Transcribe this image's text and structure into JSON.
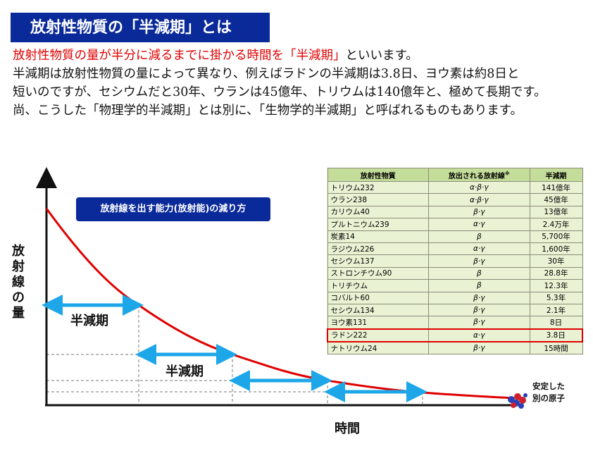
{
  "title": "放射性物質の「半減期」とは",
  "intro": {
    "line1_red": "放射性物質の量が半分に減るまでに掛かる時間を「半減期」",
    "line1_rest": "といいます。",
    "line2": "半減期は放射性物質の量によって異なり、例えばラドンの半減期は3.8日、ヨウ素は約8日と",
    "line3": "短いのですが、セシウムだと30年、ウランは45億年、トリウムは140億年と、極めて長期です。",
    "line4": "尚、こうした「物理学的半減期」とは別に、「生物学的半減期」と呼ばれるものもあります。"
  },
  "diagram": {
    "box_label": "放射線を出す能力(放射能)の減り方",
    "halflife_label_1": "半減期",
    "halflife_label_2": "半減期",
    "y_axis_label": "放射線の量",
    "x_axis_label": "時間",
    "stable_label_1": "安定した",
    "stable_label_2": "別の原子",
    "curve_color": "#e00000",
    "arrow_color": "#1ea7e8"
  },
  "table": {
    "headers": [
      "放射性物質",
      "放出される放射線",
      "半減期"
    ],
    "header_note": "※",
    "rows": [
      {
        "name": "トリウム232",
        "rays": "α·β·γ",
        "halflife": "141億年"
      },
      {
        "name": "ウラン238",
        "rays": "α·β·γ",
        "halflife": "45億年"
      },
      {
        "name": "カリウム40",
        "rays": "β·γ",
        "halflife": "13億年"
      },
      {
        "name": "プルトニウム239",
        "rays": "α·γ",
        "halflife": "2.4万年"
      },
      {
        "name": "炭素14",
        "rays": "β",
        "halflife": "5,700年"
      },
      {
        "name": "ラジウム226",
        "rays": "α·γ",
        "halflife": "1,600年"
      },
      {
        "name": "セシウム137",
        "rays": "β·γ",
        "halflife": "30年"
      },
      {
        "name": "ストロンチウム90",
        "rays": "β",
        "halflife": "28.8年"
      },
      {
        "name": "トリチウム",
        "rays": "β",
        "halflife": "12.3年"
      },
      {
        "name": "コバルト60",
        "rays": "β·γ",
        "halflife": "5.3年"
      },
      {
        "name": "セシウム134",
        "rays": "β·γ",
        "halflife": "2.1年"
      },
      {
        "name": "ヨウ素131",
        "rays": "β·γ",
        "halflife": "8日"
      },
      {
        "name": "ラドン222",
        "rays": "α·γ",
        "halflife": "3.8日",
        "highlight": true
      },
      {
        "name": "ナトリウム24",
        "rays": "β·γ",
        "halflife": "15時間"
      }
    ]
  }
}
